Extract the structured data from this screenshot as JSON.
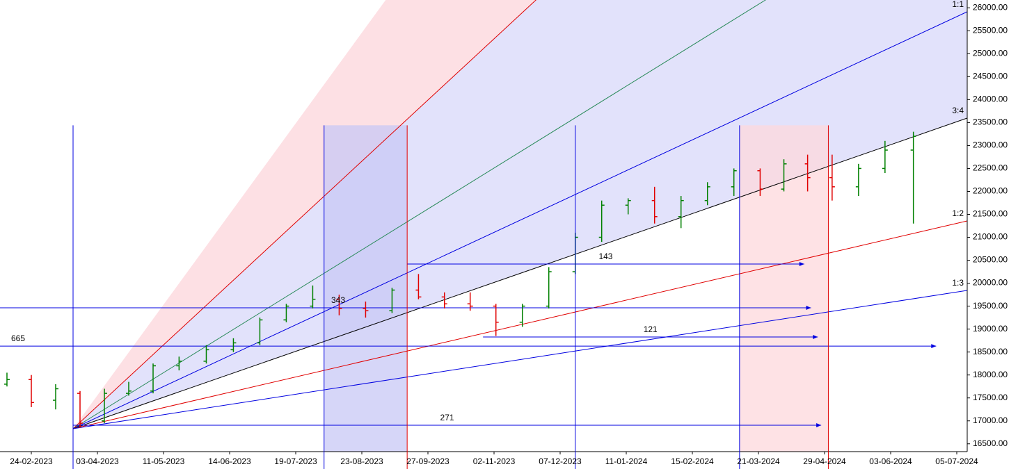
{
  "chart_data": {
    "type": "ohlc",
    "xticks": [
      "24-02-2023",
      "03-04-2023",
      "11-05-2023",
      "14-06-2023",
      "19-07-2023",
      "23-08-2023",
      "27-09-2023",
      "02-11-2023",
      "07-12-2023",
      "11-01-2024",
      "15-02-2024",
      "21-03-2024",
      "29-04-2024",
      "03-06-2024",
      "05-07-2024"
    ],
    "ylim": [
      16330,
      26170
    ],
    "yticks": [
      {
        "value": 16500,
        "label": "16500.00"
      },
      {
        "value": 17000,
        "label": "17000.00"
      },
      {
        "value": 17500,
        "label": "17500.00"
      },
      {
        "value": 18000,
        "label": "18000.00"
      },
      {
        "value": 18500,
        "label": "18500.00"
      },
      {
        "value": 19000,
        "label": "19000.00"
      },
      {
        "value": 19500,
        "label": "19500.00"
      },
      {
        "value": 20000,
        "label": "20000.00"
      },
      {
        "value": 20500,
        "label": "20500.00"
      },
      {
        "value": 21000,
        "label": "21000.00"
      },
      {
        "value": 21500,
        "label": "21500.00"
      },
      {
        "value": 22000,
        "label": "22000.00"
      },
      {
        "value": 22500,
        "label": "22500.00"
      },
      {
        "value": 23000,
        "label": "23000.00"
      },
      {
        "value": 23500,
        "label": "23500.00"
      },
      {
        "value": 24000,
        "label": "24000.00"
      },
      {
        "value": 24500,
        "label": "24500.00"
      },
      {
        "value": 25000,
        "label": "25000.00"
      },
      {
        "value": 25500,
        "label": "25500.00"
      },
      {
        "value": 26000,
        "label": "26000.00"
      }
    ],
    "up_color": "#008000",
    "down_color": "#e00000",
    "x": [
      "10-02-2023",
      "24-02-2023",
      "10-03-2023",
      "24-03-2023",
      "07-04-2023",
      "21-04-2023",
      "05-05-2023",
      "19-05-2023",
      "02-06-2023",
      "16-06-2023",
      "30-06-2023",
      "14-07-2023",
      "28-07-2023",
      "11-08-2023",
      "25-08-2023",
      "08-09-2023",
      "22-09-2023",
      "06-10-2023",
      "20-10-2023",
      "03-11-2023",
      "17-11-2023",
      "01-12-2023",
      "15-12-2023",
      "29-12-2023",
      "12-01-2024",
      "26-01-2024",
      "09-02-2024",
      "23-02-2024",
      "08-03-2024",
      "22-03-2024",
      "05-04-2024",
      "19-04-2024",
      "03-05-2024",
      "17-05-2024",
      "31-05-2024",
      "14-06-2024"
    ],
    "open": [
      17800,
      17900,
      17450,
      17600,
      17000,
      17600,
      17650,
      18200,
      18300,
      18550,
      18700,
      19200,
      19500,
      19650,
      19450,
      19400,
      19850,
      19700,
      19550,
      19500,
      19150,
      19500,
      20250,
      21000,
      21700,
      21800,
      21450,
      21800,
      22100,
      22450,
      22050,
      22600,
      22300,
      22100,
      22500,
      22900
    ],
    "high": [
      18050,
      18000,
      17800,
      17650,
      17700,
      17850,
      18250,
      18400,
      18650,
      18800,
      19250,
      19550,
      19950,
      19750,
      19600,
      19900,
      20200,
      19800,
      19800,
      19550,
      19550,
      20350,
      21100,
      21800,
      21850,
      22100,
      21900,
      22200,
      22500,
      22500,
      22700,
      22800,
      22800,
      22600,
      23100,
      23300
    ],
    "low": [
      17750,
      17300,
      17250,
      16850,
      16950,
      17550,
      17600,
      18100,
      18250,
      18500,
      18650,
      19150,
      19450,
      19300,
      19250,
      19350,
      19650,
      19450,
      19400,
      18850,
      19050,
      19450,
      20200,
      20900,
      21500,
      21300,
      21200,
      21700,
      21900,
      21900,
      22000,
      22000,
      21800,
      21900,
      22400,
      21300
    ],
    "close": [
      17900,
      17400,
      17700,
      16950,
      17600,
      17650,
      18200,
      18300,
      18550,
      18700,
      19200,
      19500,
      19650,
      19450,
      19400,
      19850,
      19700,
      19550,
      19500,
      19150,
      19500,
      20250,
      21000,
      21700,
      21800,
      21450,
      21800,
      22100,
      22450,
      22050,
      22600,
      22300,
      22100,
      22500,
      22900,
      23200
    ],
    "fan": {
      "origin_date": "20-03-2023",
      "origin_price": 16830,
      "end_date": "10-07-2024",
      "lines": [
        {
          "end": 34870,
          "color": "#e00000"
        },
        {
          "end": 28890,
          "color": "#2a8a5a"
        },
        {
          "label": "1:1",
          "end": 25913,
          "color": "#0000e0"
        },
        {
          "label": "3:4",
          "end": 23596,
          "color": "#000000"
        },
        {
          "label": "1:2",
          "end": 21356,
          "color": "#e00000"
        },
        {
          "label": "1:3",
          "end": 19842,
          "color": "#0000e0"
        }
      ],
      "shading": [
        {
          "from": 43540,
          "to": 34870,
          "color": "#fde0e4"
        },
        {
          "from": 34870,
          "to": 23596,
          "color": "#e2e2fb"
        }
      ]
    },
    "zones": [
      {
        "start": "03-08-2023",
        "end": "16-09-2023",
        "top": 23440,
        "color": "#c8c8f6"
      },
      {
        "start": "11-03-2024",
        "end": "01-05-2024",
        "top": 23440,
        "color": "#fdd8dc"
      }
    ],
    "verticals": [
      {
        "date": "20-03-2023",
        "color": "#0000e0"
      },
      {
        "date": "03-08-2023",
        "color": "#0000e0"
      },
      {
        "date": "16-09-2023",
        "color": "#e00000"
      },
      {
        "date": "15-12-2023",
        "color": "#0000e0"
      },
      {
        "date": "11-03-2024",
        "color": "#0000e0"
      },
      {
        "date": "01-05-2024",
        "color": "#e00000"
      }
    ],
    "arrows": [
      {
        "label": "271",
        "price": 16905,
        "start": "20-03-2023",
        "end": "27-04-2024"
      },
      {
        "label": "121",
        "price": 18827,
        "start": "27-10-2023",
        "end": "25-04-2024"
      },
      {
        "label": "143",
        "price": 20417,
        "start": "16-09-2023",
        "end": "17-04-2024"
      },
      {
        "label": "343",
        "price": 19463,
        "start": "06-02-2023",
        "end": "21-04-2024"
      },
      {
        "label": "665",
        "price": 18630,
        "start": "06-02-2023",
        "end": "25-06-2024"
      }
    ]
  }
}
